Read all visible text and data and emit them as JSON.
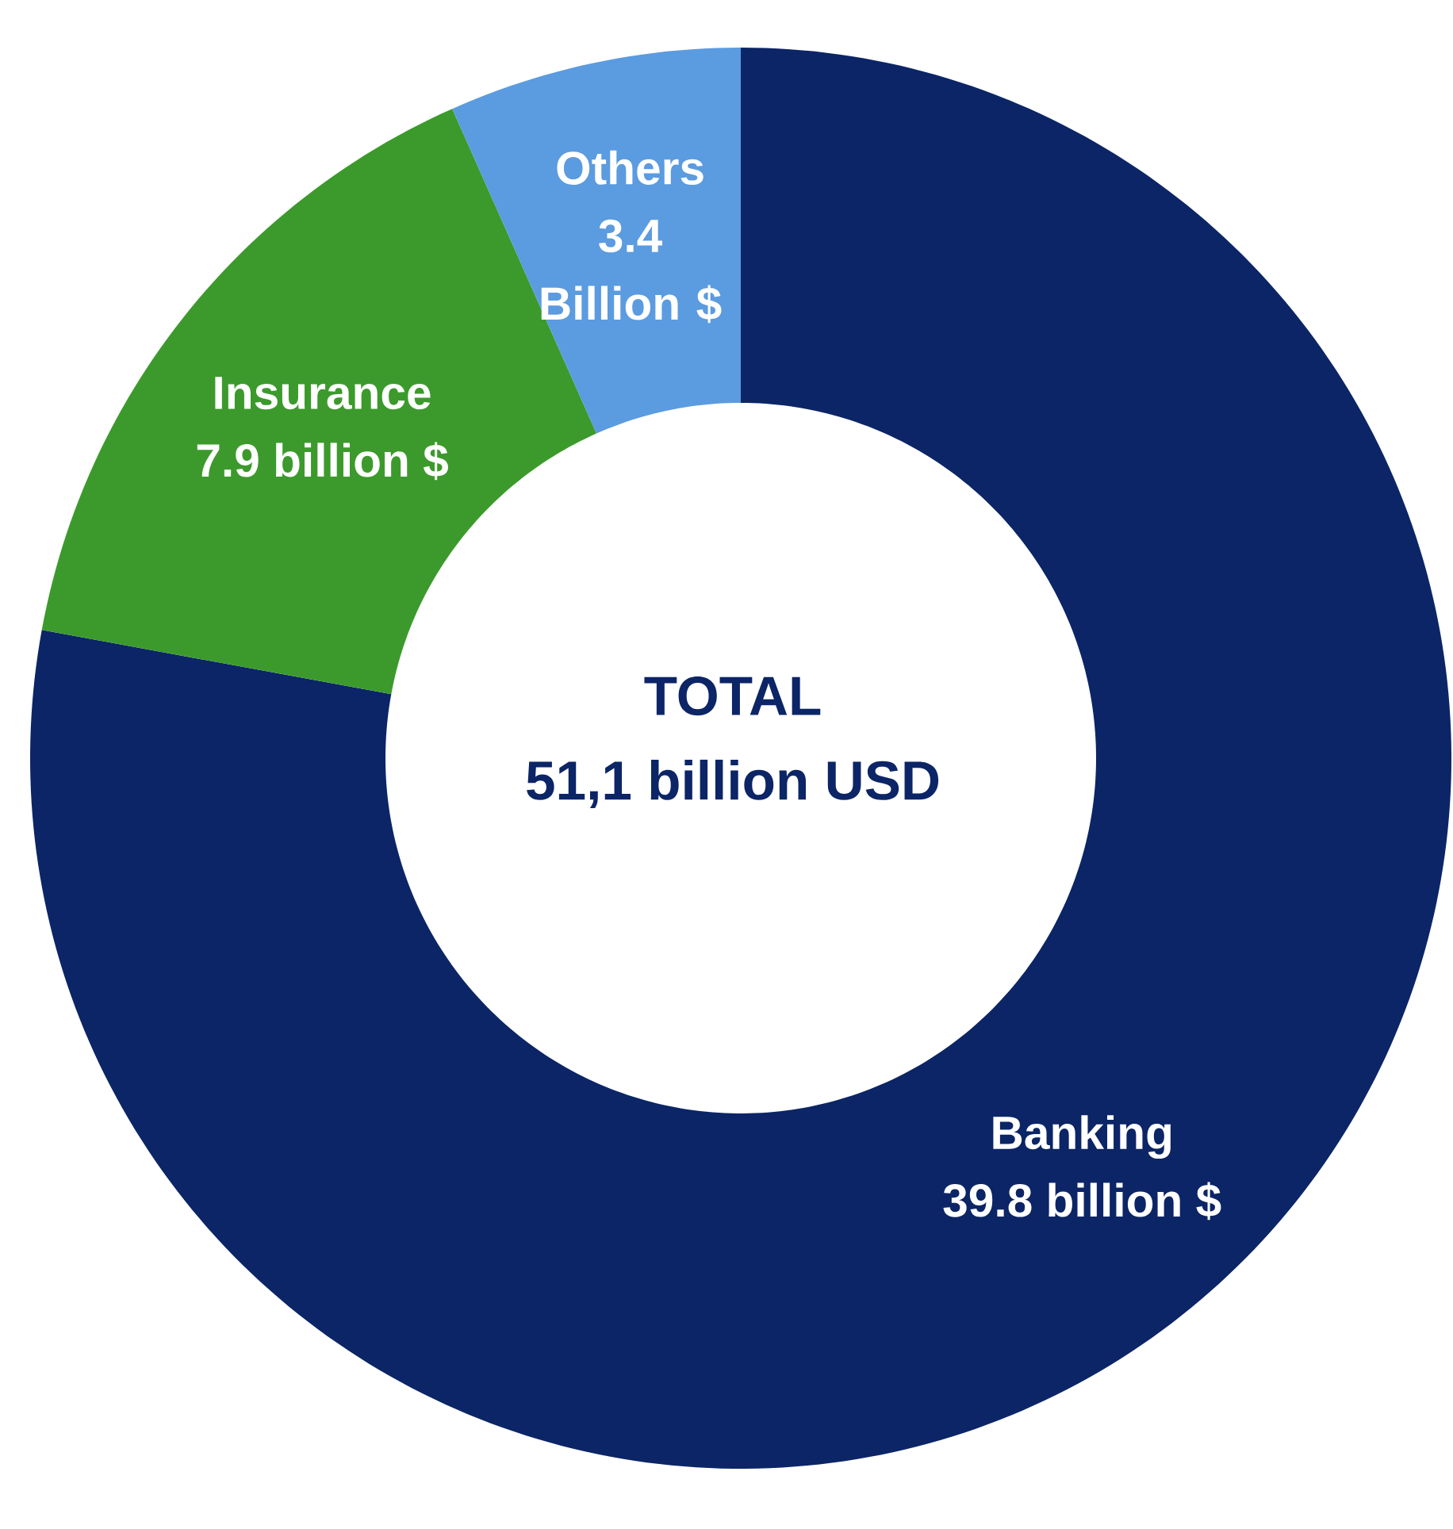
{
  "chart_data": {
    "type": "donut",
    "categories": [
      "Banking",
      "Insurance",
      "Others"
    ],
    "values": [
      39.8,
      7.9,
      3.4
    ],
    "value_labels": [
      "39.8 billion $",
      "7.9 billion $",
      "3.4 Billion $"
    ],
    "colors": [
      "#0b2566",
      "#3c9a2c",
      "#5b9be0"
    ],
    "annotations": [
      "TOTAL",
      "51,1  billion USD"
    ]
  }
}
